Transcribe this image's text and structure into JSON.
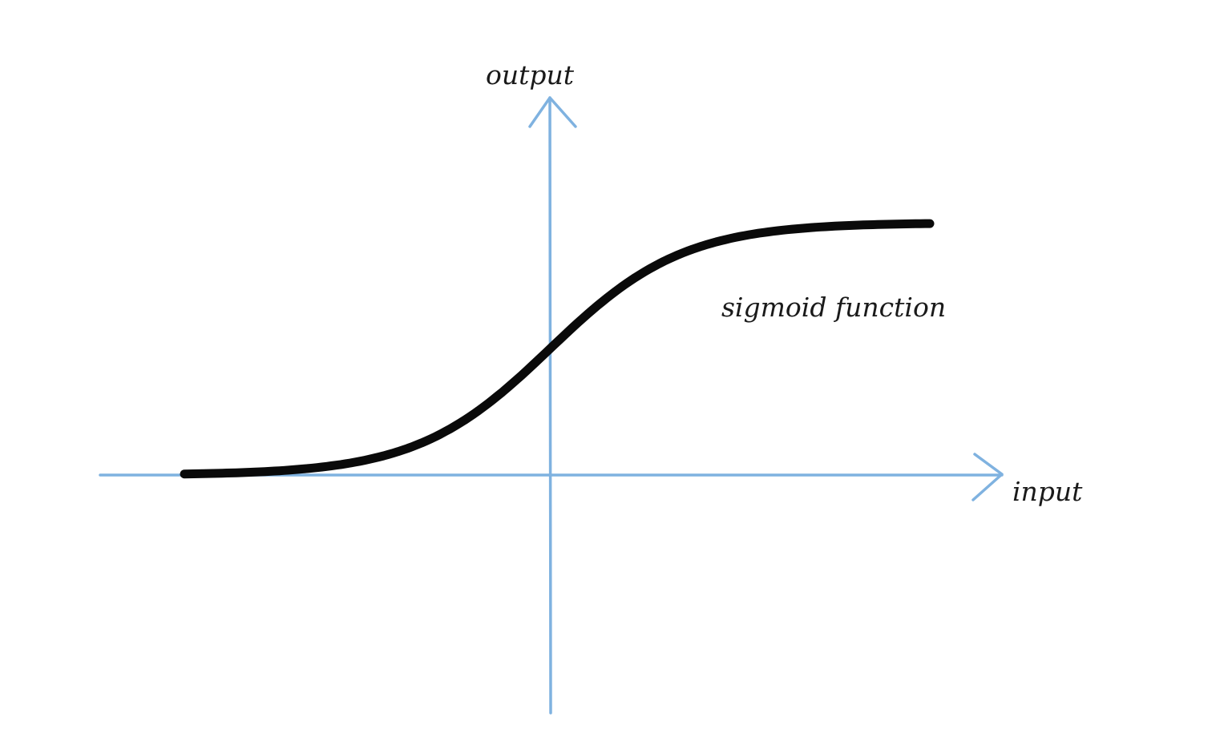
{
  "diagram": {
    "y_axis_label": "output",
    "x_axis_label": "input",
    "curve_label": "sigmoid function",
    "colors": {
      "axis": "#7fb2e0",
      "curve": "#0a0a0a",
      "text": "#1a1a1a",
      "background": "#ffffff"
    }
  },
  "chart_data": {
    "type": "line",
    "title": "",
    "xlabel": "input",
    "ylabel": "output",
    "series": [
      {
        "name": "sigmoid function",
        "function": "1 / (1 + exp(-x))"
      }
    ],
    "xlim": [
      -6,
      6
    ],
    "ylim": [
      0,
      1
    ],
    "grid": false
  }
}
